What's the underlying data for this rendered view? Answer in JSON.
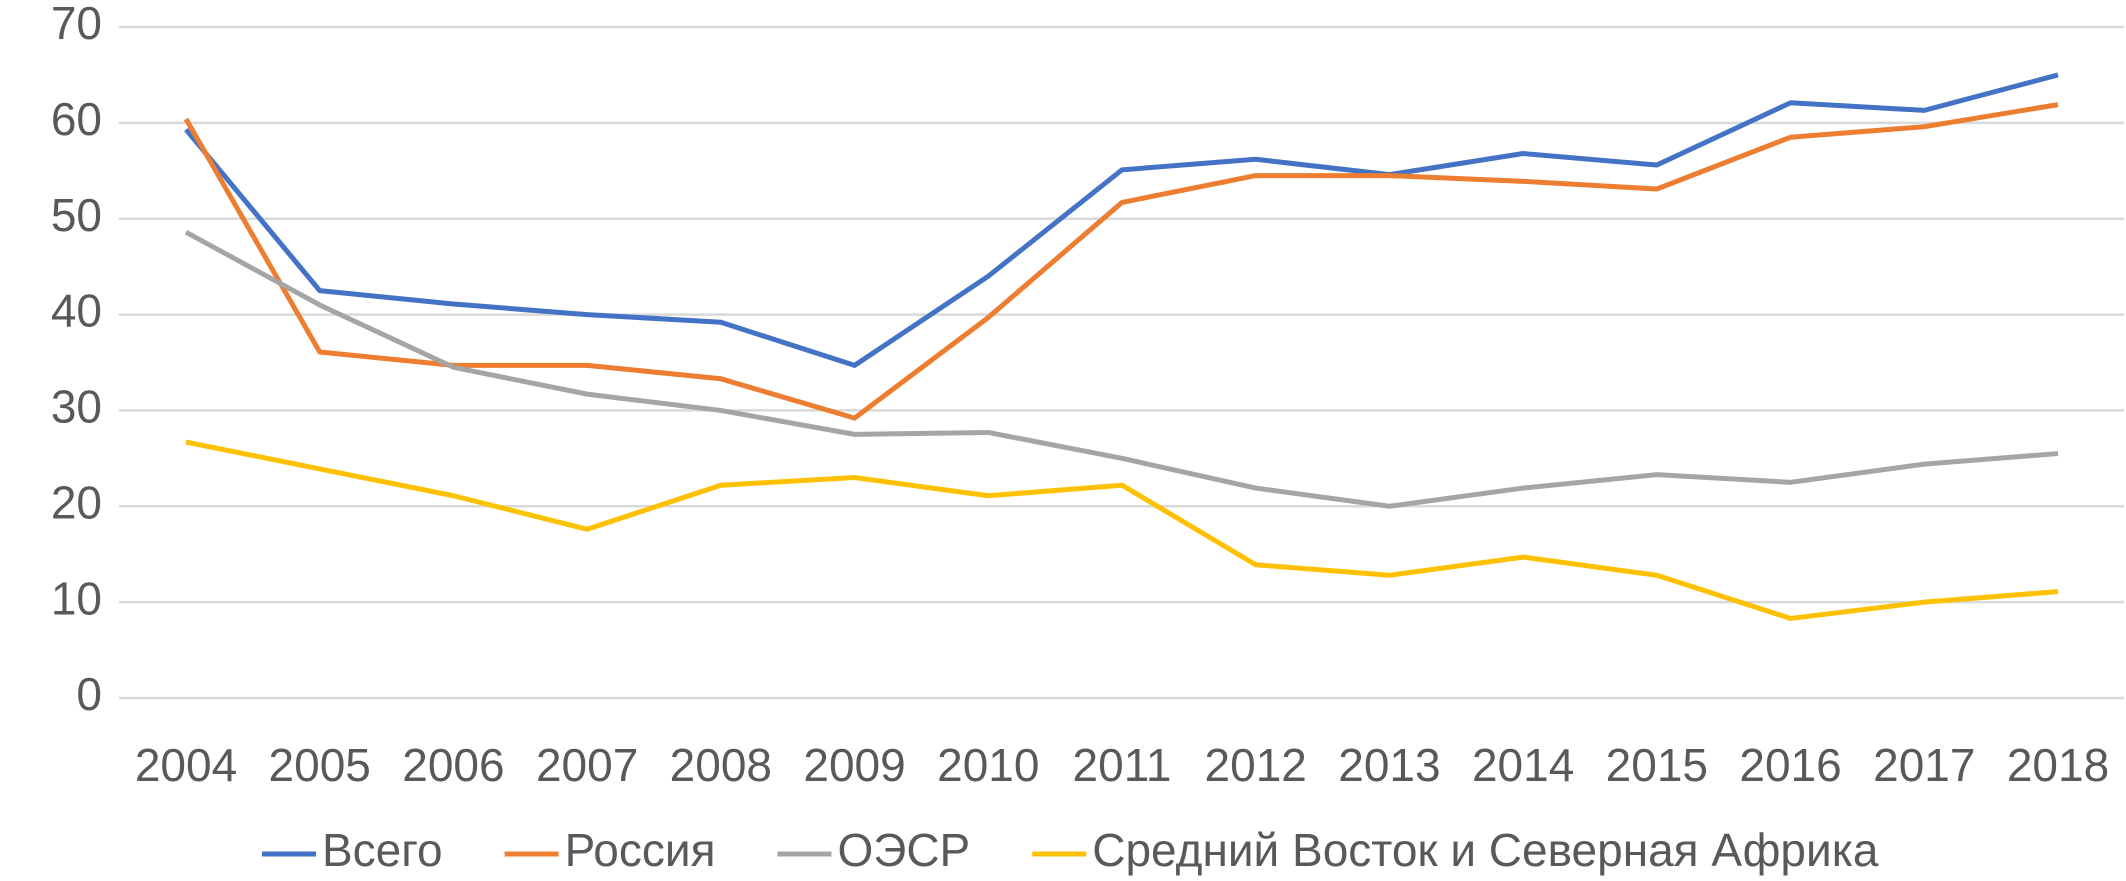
{
  "chart_data": {
    "type": "line",
    "categories": [
      "2004",
      "2005",
      "2006",
      "2007",
      "2008",
      "2009",
      "2010",
      "2011",
      "2012",
      "2013",
      "2014",
      "2015",
      "2016",
      "2017",
      "2018"
    ],
    "series": [
      {
        "name": "Всего",
        "color": "#4472c4",
        "values": [
          59.3,
          42.5,
          41.1,
          40.0,
          39.2,
          34.7,
          44.0,
          55.1,
          56.2,
          54.6,
          56.8,
          55.6,
          62.1,
          61.3,
          65.0
        ]
      },
      {
        "name": "Россия",
        "color": "#ed7d31",
        "values": [
          60.4,
          36.1,
          34.7,
          34.7,
          33.3,
          29.2,
          39.7,
          51.7,
          54.5,
          54.5,
          53.9,
          53.1,
          58.5,
          59.6,
          61.9
        ]
      },
      {
        "name": "ОЭСР",
        "color": "#a5a5a5",
        "values": [
          48.6,
          41.0,
          34.5,
          31.7,
          30.0,
          27.5,
          27.7,
          25.0,
          21.9,
          20.0,
          21.9,
          23.3,
          22.5,
          24.4,
          25.5
        ]
      },
      {
        "name": "Средний Восток и Северная Африка",
        "color": "#ffc000",
        "values": [
          26.7,
          23.9,
          21.1,
          17.6,
          22.2,
          23.0,
          21.1,
          22.2,
          13.9,
          12.8,
          14.7,
          12.8,
          8.3,
          10.0,
          11.1
        ]
      }
    ],
    "ylim": [
      0,
      70
    ],
    "yticks": [
      0,
      10,
      20,
      30,
      40,
      50,
      60,
      70
    ],
    "grid": true,
    "legend": "bottom"
  }
}
